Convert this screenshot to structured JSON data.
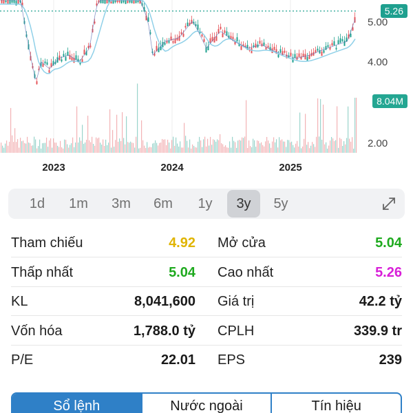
{
  "chart": {
    "price_tag": "5.26",
    "volume_tag": "8.04M",
    "y_ticks": [
      "5.00",
      "4.00",
      "2.00"
    ],
    "x_ticks": [
      "2023",
      "2024",
      "2025"
    ],
    "colors": {
      "up": "#1fa08f",
      "down": "#e5545a",
      "ma": "#8fd0e8",
      "candle_line": "#5a6cb0",
      "ref_line": "#1fa08f"
    }
  },
  "timeframes": {
    "items": [
      "1d",
      "1m",
      "3m",
      "6m",
      "1y",
      "3y",
      "5y"
    ],
    "active": "3y",
    "expand_icon": "expand-arrows-icon"
  },
  "stats": {
    "rows": [
      {
        "l_label": "Tham chiếu",
        "l_value": "4.92",
        "l_color": "#e0b400",
        "r_label": "Mở cửa",
        "r_value": "5.04",
        "r_color": "#1faa1f"
      },
      {
        "l_label": "Thấp nhất",
        "l_value": "5.04",
        "l_color": "#1faa1f",
        "r_label": "Cao nhất",
        "r_value": "5.26",
        "r_color": "#d81fd8"
      },
      {
        "l_label": "KL",
        "l_value": "8,041,600",
        "l_color": "#1a1a1a",
        "r_label": "Giá trị",
        "r_value": "42.2 tỷ",
        "r_color": "#1a1a1a"
      },
      {
        "l_label": "Vốn hóa",
        "l_value": "1,788.0 tỷ",
        "l_color": "#1a1a1a",
        "r_label": "CPLH",
        "r_value": "339.9 tr",
        "r_color": "#1a1a1a"
      },
      {
        "l_label": "P/E",
        "l_value": "22.01",
        "l_color": "#1a1a1a",
        "r_label": "EPS",
        "r_value": "239",
        "r_color": "#1a1a1a"
      }
    ]
  },
  "tabs": {
    "items": [
      "Sổ lệnh",
      "Nước ngoài",
      "Tín hiệu"
    ],
    "active": 0
  }
}
